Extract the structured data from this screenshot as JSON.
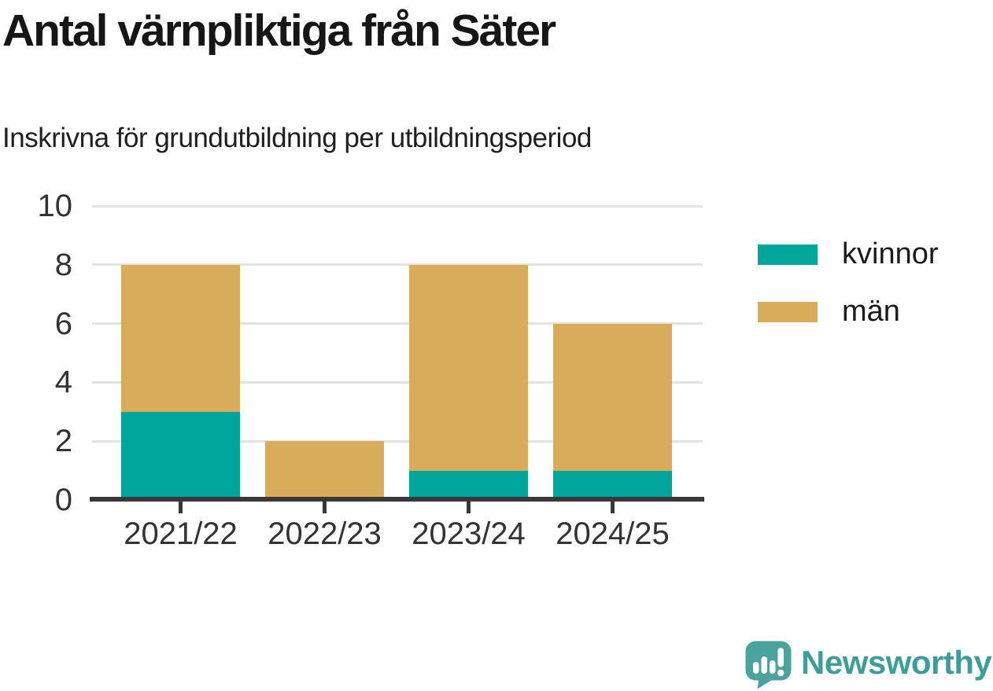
{
  "header": {
    "title": "Antal värnpliktiga från Säter",
    "subtitle": "Inskrivna för grundutbildning per utbildningsperiod"
  },
  "chart_data": {
    "type": "bar",
    "stacked": true,
    "title": "Antal värnpliktiga från Säter",
    "subtitle": "Inskrivna för grundutbildning per utbildningsperiod",
    "categories": [
      "2021/22",
      "2022/23",
      "2023/24",
      "2024/25"
    ],
    "series": [
      {
        "name": "kvinnor",
        "color": "#00a59b",
        "values": [
          3,
          0,
          1,
          1
        ]
      },
      {
        "name": "män",
        "color": "#d9ac5c",
        "values": [
          5,
          2,
          7,
          5
        ]
      }
    ],
    "ylim": [
      0,
      10
    ],
    "yticks": [
      0,
      2,
      4,
      6,
      8,
      10
    ],
    "grid": true,
    "legend_position": "right",
    "xlabel": "",
    "ylabel": ""
  },
  "branding": {
    "logo_text": "Newsworthy",
    "logo_color": "#3f9d98",
    "logo_icon_color": "#4ba39d",
    "logo_icon": "bar-chart-speech-bubble"
  },
  "style_colors": {
    "axis": "#383838",
    "grid": "#e3e3e3",
    "tick_text": "#333333",
    "title_text": "#161616"
  }
}
